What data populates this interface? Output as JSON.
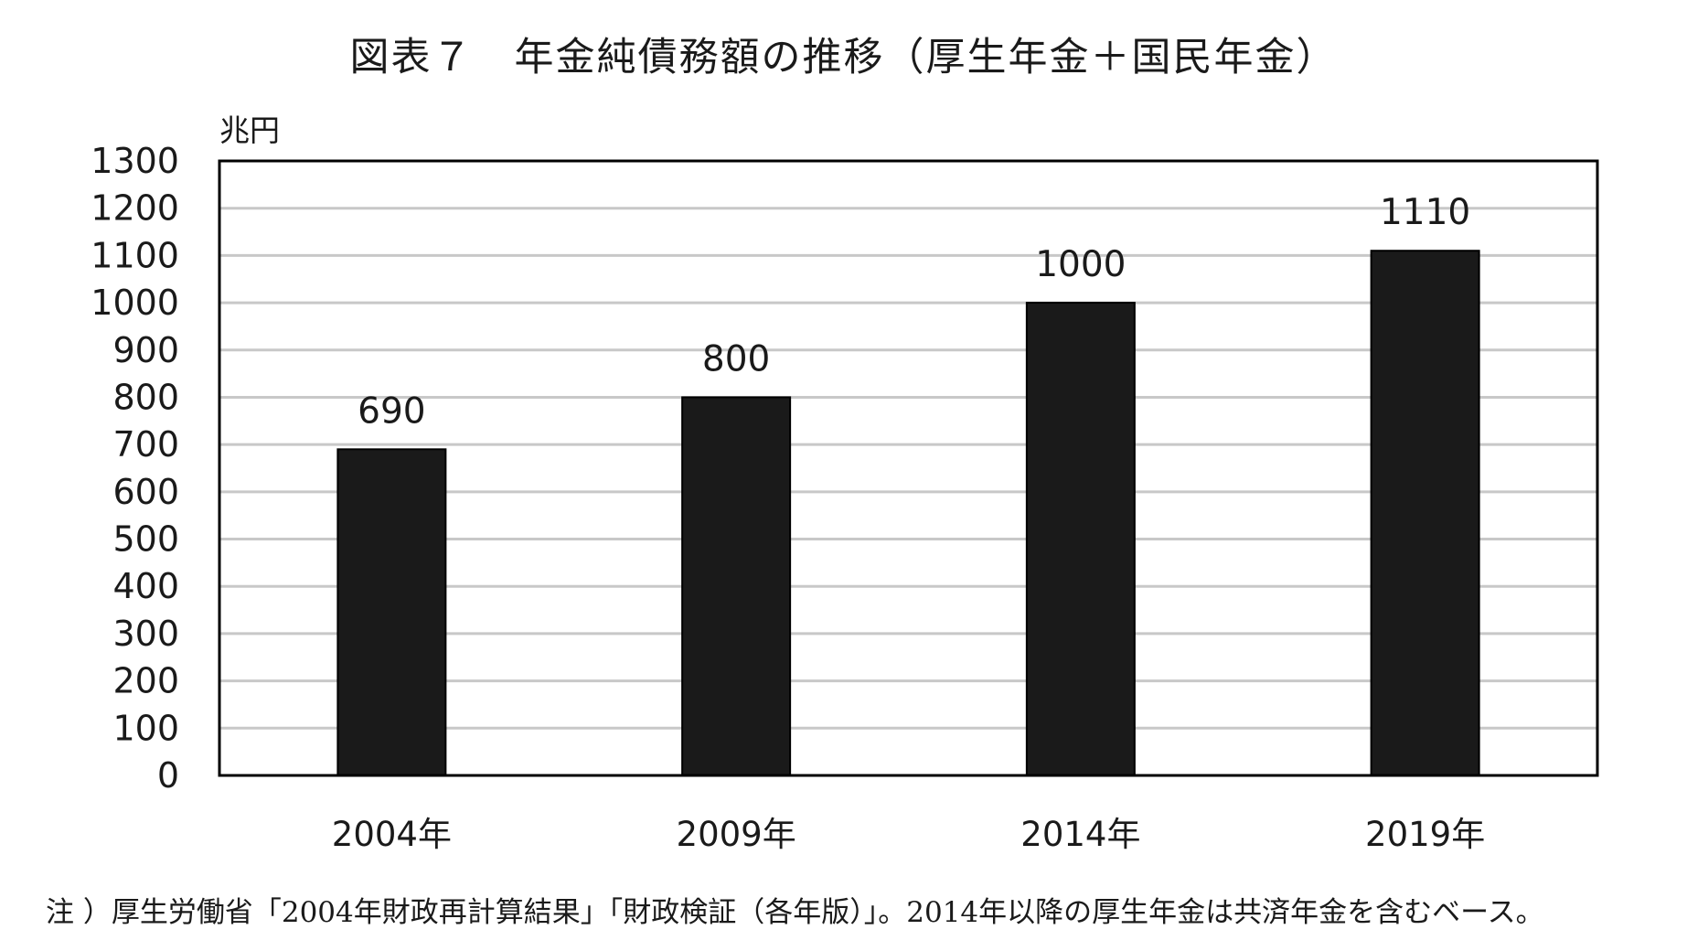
{
  "chart_data": {
    "type": "bar",
    "title": "図表７　年金純債務額の推移（厚生年金＋国民年金）",
    "ylabel": "兆円",
    "xlabel": "",
    "categories": [
      "2004年",
      "2009年",
      "2014年",
      "2019年"
    ],
    "values": [
      690,
      800,
      1000,
      1110
    ],
    "data_labels": [
      "690",
      "800",
      "1000",
      "1110"
    ],
    "ylim": [
      0,
      1300
    ],
    "yticks": [
      0,
      100,
      200,
      300,
      400,
      500,
      600,
      700,
      800,
      900,
      1000,
      1100,
      1200,
      1300
    ],
    "grid": true,
    "legend": "none",
    "bar_color": "#1a1a1a",
    "grid_color": "#c8c8c8",
    "note": "注 ）厚生労働省「2004年財政再計算結果」「財政検証（各年版）」。2014年以降の厚生年金は共済年金を含むベース。"
  }
}
